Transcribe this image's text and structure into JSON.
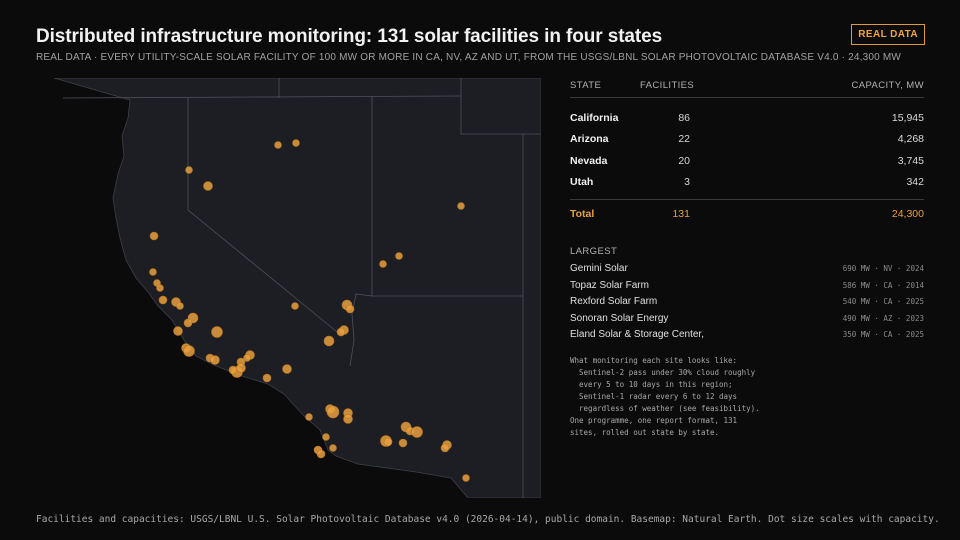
{
  "header": {
    "title": "Distributed infrastructure monitoring: 131 solar facilities in four states",
    "subtitle": "REAL DATA · EVERY UTILITY-SCALE SOLAR FACILITY OF 100 MW OR MORE IN CA, NV, AZ AND UT, FROM THE USGS/LBNL SOLAR PHOTOVOLTAIC DATABASE V4.0 · 24,300 MW",
    "badge": "REAL DATA"
  },
  "table": {
    "headers": [
      "STATE",
      "FACILITIES",
      "CAPACITY, MW"
    ],
    "rows": [
      {
        "state": "California",
        "facilities": "86",
        "capacity": "15,945"
      },
      {
        "state": "Arizona",
        "facilities": "22",
        "capacity": "4,268"
      },
      {
        "state": "Nevada",
        "facilities": "20",
        "capacity": "3,745"
      },
      {
        "state": "Utah",
        "facilities": "3",
        "capacity": "342"
      }
    ],
    "total": {
      "label": "Total",
      "facilities": "131",
      "capacity": "24,300"
    }
  },
  "largest": {
    "heading": "LARGEST",
    "items": [
      {
        "name": "Gemini Solar",
        "meta": "690 MW · NV · 2024"
      },
      {
        "name": "Topaz Solar Farm",
        "meta": "586 MW · CA · 2014"
      },
      {
        "name": "Rexford Solar Farm",
        "meta": "540 MW · CA · 2025"
      },
      {
        "name": "Sonoran Solar Energy",
        "meta": "490 MW · AZ · 2023"
      },
      {
        "name": "Eland Solar & Storage Center,",
        "meta": "350 MW · CA · 2025"
      }
    ]
  },
  "note": "What monitoring each site looks like:\n  Sentinel-2 pass under 30% cloud roughly\n  every 5 to 10 days in this region;\n  Sentinel-1 radar every 6 to 12 days\n  regardless of weather (see feasibility).\nOne programme, one report format, 131\nsites, rolled out state by state.",
  "footer": "Facilities and capacities: USGS/LBNL U.S. Solar Photovoltaic Database v4.0 (2026-04-14), public domain. Basemap: Natural Earth. Dot size scales with capacity.",
  "colors": {
    "accent": "#f0a441",
    "dot": "#e8a040",
    "land": "#1c1e23",
    "border": "#4a4d55"
  }
}
